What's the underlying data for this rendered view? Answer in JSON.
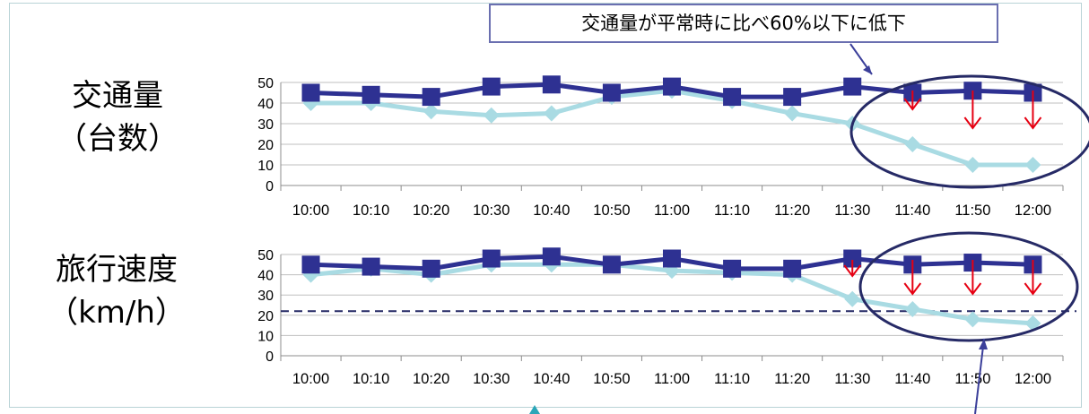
{
  "callout": {
    "text": "交通量が平常時に比べ60%以下に低下"
  },
  "rows": [
    {
      "label_line1": "交通量",
      "label_line2": "（台数）"
    },
    {
      "label_line1": "旅行速度",
      "label_line2": "（km/h）"
    }
  ],
  "colors": {
    "normal_series": "#2e3192",
    "event_series": "#a9dbe3",
    "arrows": "#e60012",
    "ellipse": "#262a66",
    "threshold_line": "#262a66",
    "grid": "#bfbfbf"
  },
  "chart_data": [
    {
      "type": "line",
      "categories": [
        "10:00",
        "10:10",
        "10:20",
        "10:30",
        "10:40",
        "10:50",
        "11:00",
        "11:10",
        "11:20",
        "11:30",
        "11:40",
        "11:50",
        "12:00"
      ],
      "ylim": [
        0,
        50
      ],
      "yticks": [
        "50",
        "40",
        "30",
        "20",
        "10",
        "0"
      ],
      "series": [
        {
          "marker": "square",
          "color": "#2e3192",
          "values": [
            45,
            44,
            43,
            48,
            49,
            45,
            48,
            43,
            43,
            48,
            45,
            46,
            45
          ]
        },
        {
          "marker": "diamond",
          "color": "#a9dbe3",
          "values": [
            40,
            40,
            36,
            34,
            35,
            43,
            46,
            41,
            35,
            30,
            20,
            10,
            10
          ]
        }
      ],
      "grid": true
    },
    {
      "type": "line",
      "categories": [
        "10:00",
        "10:10",
        "10:20",
        "10:30",
        "10:40",
        "10:50",
        "11:00",
        "11:10",
        "11:20",
        "11:30",
        "11:40",
        "11:50",
        "12:00"
      ],
      "ylim": [
        0,
        50
      ],
      "yticks": [
        "50",
        "40",
        "30",
        "20",
        "10",
        "0"
      ],
      "series": [
        {
          "marker": "square",
          "color": "#2e3192",
          "values": [
            45,
            44,
            43,
            48,
            49,
            45,
            48,
            43,
            43,
            48,
            45,
            46,
            45
          ]
        },
        {
          "marker": "diamond",
          "color": "#a9dbe3",
          "values": [
            40,
            43,
            40,
            45,
            45,
            45,
            42,
            41,
            40,
            28,
            23,
            18,
            16
          ]
        }
      ],
      "threshold": 22,
      "grid": true
    }
  ]
}
